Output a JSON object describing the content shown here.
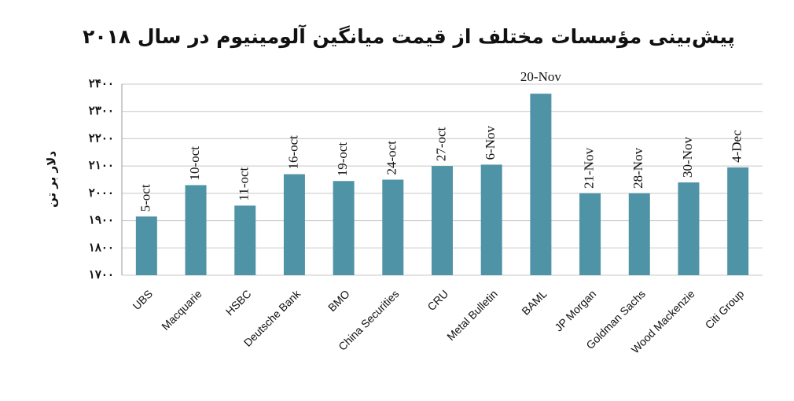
{
  "chart_data": {
    "type": "bar",
    "title": "پیش‌بینی مؤسسات مختلف از قیمت میانگین آلومینیوم در سال ۲۰۱۸",
    "y_label": "دلار بر تن",
    "categories": [
      "UBS",
      "Macquarie",
      "HSBC",
      "Deutsche Bank",
      "BMO",
      "China Securities",
      "CRU",
      "Metal Bulletin",
      "BAML",
      "JP Morgan",
      "Goldman Sachs",
      "Wood Mackenzie",
      "Citi Group"
    ],
    "values": [
      1915,
      2030,
      1955,
      2070,
      2045,
      2050,
      2100,
      2105,
      2365,
      2000,
      2000,
      2040,
      2095
    ],
    "annotations": [
      "5-oct",
      "10-oct",
      "11-oct",
      "16-oct",
      "19-oct",
      "24-oct",
      "27-oct",
      "6-Nov",
      "20-Nov",
      "21-Nov",
      "28-Nov",
      "30-Nov",
      "4-Dec"
    ],
    "color": "#4f93a7",
    "ylim": [
      1700,
      2400
    ],
    "yticks": [
      {
        "value": 1700,
        "label": "۱۷۰۰"
      },
      {
        "value": 1800,
        "label": "۱۸۰۰"
      },
      {
        "value": 1900,
        "label": "۱۹۰۰"
      },
      {
        "value": 2000,
        "label": "۲۰۰۰"
      },
      {
        "value": 2100,
        "label": "۲۱۰۰"
      },
      {
        "value": 2200,
        "label": "۲۲۰۰"
      },
      {
        "value": 2300,
        "label": "۲۳۰۰"
      },
      {
        "value": 2400,
        "label": "۲۴۰۰"
      }
    ],
    "grid": true
  }
}
